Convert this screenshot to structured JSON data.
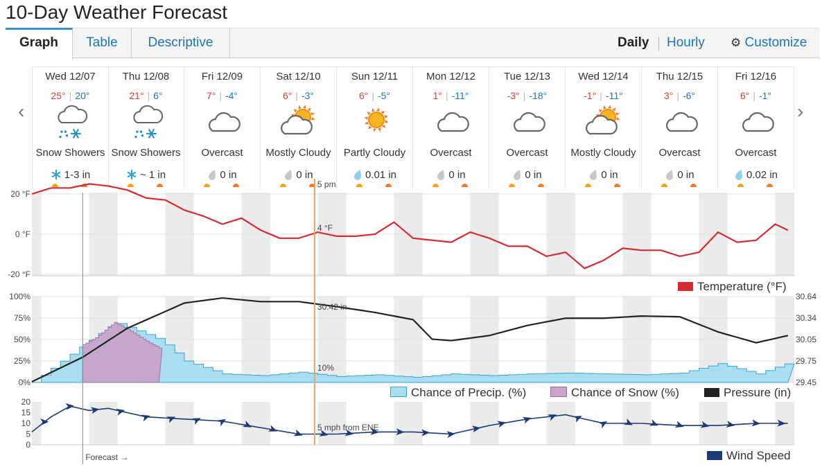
{
  "page": {
    "title": "10-Day Weather Forecast"
  },
  "tabs": [
    "Graph",
    "Table",
    "Descriptive"
  ],
  "view": {
    "daily": "Daily",
    "hourly": "Hourly",
    "customize": "Customize"
  },
  "days": [
    {
      "date": "Wed 12/07",
      "hi": "25°",
      "lo": "20°",
      "cond": "Snow Showers",
      "icon": "snow-showers-icon",
      "precip": "1-3 in",
      "precip_type": "snow"
    },
    {
      "date": "Thu 12/08",
      "hi": "21°",
      "lo": "6°",
      "cond": "Snow Showers",
      "icon": "snow-showers-icon",
      "precip": "~ 1 in",
      "precip_type": "snow"
    },
    {
      "date": "Fri 12/09",
      "hi": "7°",
      "lo": "-4°",
      "cond": "Overcast",
      "icon": "cloud-icon",
      "precip": "0 in",
      "precip_type": "dry"
    },
    {
      "date": "Sat 12/10",
      "hi": "6°",
      "lo": "-3°",
      "cond": "Mostly Cloudy",
      "icon": "mostly-cloudy-icon",
      "precip": "0 in",
      "precip_type": "dry"
    },
    {
      "date": "Sun 12/11",
      "hi": "6°",
      "lo": "-5°",
      "cond": "Partly Cloudy",
      "icon": "partly-cloudy-icon",
      "precip": "0.01 in",
      "precip_type": "rain"
    },
    {
      "date": "Mon 12/12",
      "hi": "1°",
      "lo": "-11°",
      "cond": "Overcast",
      "icon": "cloud-icon",
      "precip": "0 in",
      "precip_type": "dry"
    },
    {
      "date": "Tue 12/13",
      "hi": "-3°",
      "lo": "-18°",
      "cond": "Overcast",
      "icon": "cloud-icon",
      "precip": "0 in",
      "precip_type": "dry"
    },
    {
      "date": "Wed 12/14",
      "hi": "-1°",
      "lo": "-11°",
      "cond": "Mostly Cloudy",
      "icon": "mostly-cloudy-icon",
      "precip": "0 in",
      "precip_type": "dry"
    },
    {
      "date": "Thu 12/15",
      "hi": "3°",
      "lo": "-6°",
      "cond": "Overcast",
      "icon": "cloud-icon",
      "precip": "0 in",
      "precip_type": "dry"
    },
    {
      "date": "Fri 12/16",
      "hi": "6°",
      "lo": "-1°",
      "cond": "Overcast",
      "icon": "cloud-icon",
      "precip": "0.02 in",
      "precip_type": "rain"
    }
  ],
  "colors": {
    "temperature": "#d62a33",
    "precip": "#a8def0",
    "precip_line": "#3aa3d4",
    "snow": "#c9a3c8",
    "pressure": "#222222",
    "wind": "#1c3a73",
    "cursor": "#f0a060"
  },
  "cursor": {
    "time_label": "5 pm",
    "temp_label": "4 °F",
    "precip_label": "10%",
    "pressure_label": "30.42 in",
    "wind_label": "5 mph from ENE",
    "forecast_label": "Forecast →"
  },
  "chart_data": [
    {
      "type": "line",
      "name": "temperature",
      "x_unit": "hours from start",
      "ylim": [
        -20,
        20
      ],
      "y_ticks": [
        "20 °F",
        "0 °F",
        "-20 °F"
      ],
      "legend": "Temperature (°F)",
      "series": [
        {
          "name": "Temperature (°F)",
          "x": [
            0,
            6,
            12,
            18,
            24,
            30,
            36,
            42,
            48,
            54,
            60,
            66,
            72,
            78,
            84,
            90,
            96,
            102,
            108,
            114,
            120,
            126,
            132,
            138,
            144,
            150,
            156,
            162,
            168,
            174,
            180,
            186,
            192,
            198,
            204,
            210,
            216,
            222,
            228,
            234,
            238
          ],
          "values": [
            20,
            23,
            23,
            25,
            24,
            22,
            18,
            17,
            12,
            9,
            5,
            8,
            2,
            -2,
            -2,
            1,
            -1,
            -1,
            0,
            6,
            -2,
            -3,
            -4,
            1,
            -2,
            -6,
            -6,
            -11,
            -9,
            -17,
            -13,
            -7,
            -8,
            -8,
            -11,
            -9,
            1,
            -4,
            -3,
            5,
            2
          ]
        }
      ]
    },
    {
      "type": "area",
      "name": "precipitation-and-pressure",
      "ylim": [
        0,
        100
      ],
      "y_ticks": [
        "100%",
        "75%",
        "50%",
        "25%",
        "0%"
      ],
      "pressure_ticks": [
        "30.64",
        "30.34",
        "30.05",
        "29.75",
        "29.45"
      ],
      "series": [
        {
          "name": "Chance of Precip. (%)",
          "x": [
            0,
            16,
            26,
            40,
            48,
            60,
            72,
            84,
            96,
            108,
            120,
            132,
            144,
            156,
            168,
            180,
            192,
            204,
            216,
            228,
            238
          ],
          "values": [
            0,
            44,
            70,
            50,
            25,
            10,
            8,
            12,
            7,
            9,
            6,
            10,
            8,
            10,
            11,
            10,
            9,
            11,
            22,
            10,
            23
          ]
        },
        {
          "name": "Chance of Snow (%)",
          "x": [
            16,
            20,
            26,
            30,
            36,
            40
          ],
          "values": [
            44,
            52,
            70,
            62,
            48,
            40
          ]
        },
        {
          "name": "Pressure (in)",
          "x": [
            0,
            16,
            30,
            48,
            60,
            72,
            84,
            96,
            108,
            120,
            126,
            132,
            144,
            156,
            168,
            180,
            192,
            204,
            216,
            228,
            238
          ],
          "values": [
            29.46,
            29.8,
            30.2,
            30.55,
            30.62,
            30.57,
            30.57,
            30.5,
            30.42,
            30.32,
            30.05,
            30.03,
            30.1,
            30.24,
            30.34,
            30.34,
            30.37,
            30.36,
            30.15,
            30.0,
            30.1
          ]
        }
      ],
      "legend": [
        "Chance of Precip. (%)",
        "Chance of Snow (%)",
        "Pressure (in)"
      ]
    },
    {
      "type": "line",
      "name": "wind",
      "ylim": [
        0,
        20
      ],
      "y_ticks": [
        "20",
        "15",
        "10",
        "5",
        "0"
      ],
      "legend": "Wind Speed",
      "series": [
        {
          "name": "Wind Speed",
          "x": [
            0,
            6,
            12,
            18,
            24,
            36,
            48,
            60,
            72,
            84,
            96,
            108,
            120,
            132,
            144,
            156,
            168,
            180,
            192,
            204,
            216,
            228,
            238
          ],
          "values": [
            6,
            13,
            18,
            16,
            17,
            13,
            12,
            11,
            8,
            5,
            5,
            6,
            6,
            5,
            9,
            12,
            14,
            10,
            10,
            9,
            9,
            10,
            10
          ]
        }
      ]
    }
  ]
}
